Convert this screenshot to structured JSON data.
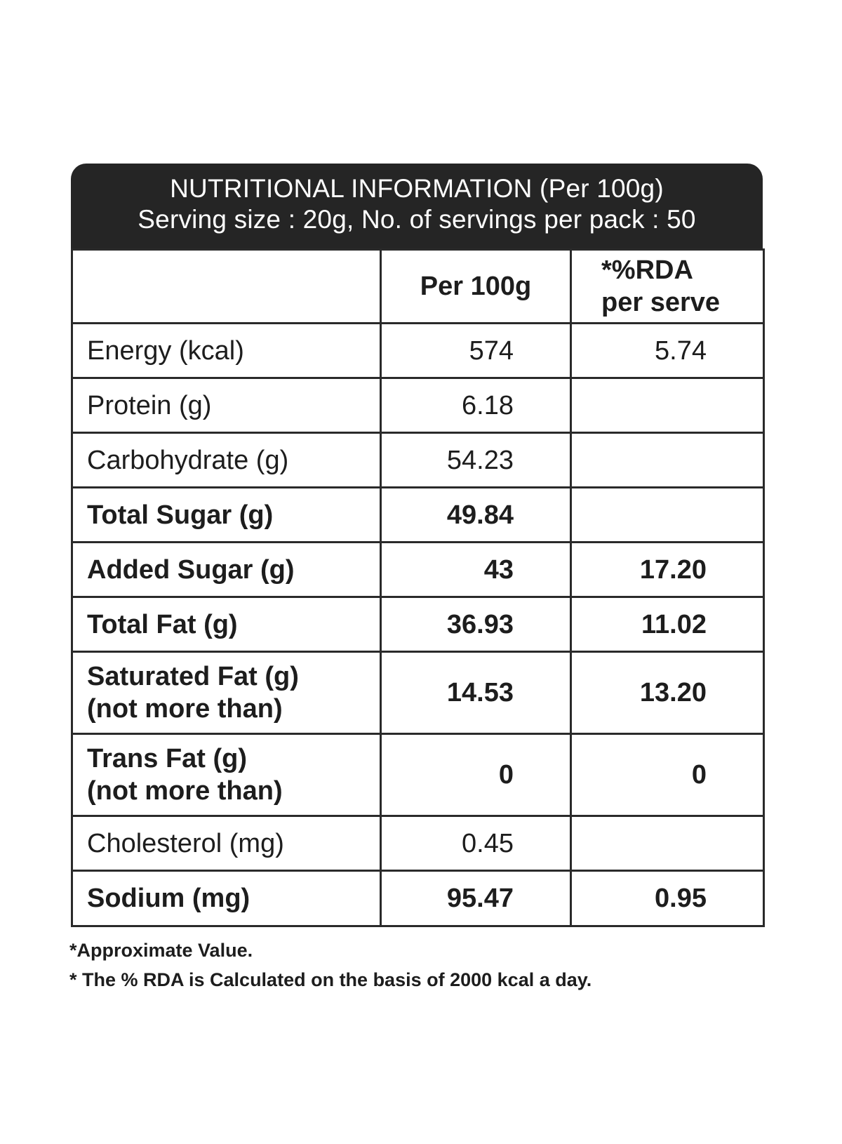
{
  "header": {
    "title": "NUTRITIONAL INFORMATION (Per 100g)",
    "subtitle": "Serving size : 20g, No. of servings per pack : 50"
  },
  "columns": {
    "blank": "",
    "per100g": "Per 100g",
    "rda_line1": "*%RDA",
    "rda_line2": "per serve"
  },
  "rows": [
    {
      "label": "Energy (kcal)",
      "label2": "",
      "per100g": "574",
      "rda": "5.74",
      "bold": false
    },
    {
      "label": "Protein (g)",
      "label2": "",
      "per100g": "6.18",
      "rda": "",
      "bold": false
    },
    {
      "label": "Carbohydrate (g)",
      "label2": "",
      "per100g": "54.23",
      "rda": "",
      "bold": false
    },
    {
      "label": "Total Sugar (g)",
      "label2": "",
      "per100g": "49.84",
      "rda": "",
      "bold": true
    },
    {
      "label": "Added Sugar (g)",
      "label2": "",
      "per100g": "43",
      "rda": "17.20",
      "bold": true
    },
    {
      "label": "Total Fat (g)",
      "label2": "",
      "per100g": "36.93",
      "rda": "11.02",
      "bold": true
    },
    {
      "label": "Saturated Fat (g)",
      "label2": "(not more than)",
      "per100g": "14.53",
      "rda": "13.20",
      "bold": true
    },
    {
      "label": "Trans Fat (g)",
      "label2": "(not more than)",
      "per100g": "0",
      "rda": "0",
      "bold": true
    },
    {
      "label": "Cholesterol (mg)",
      "label2": "",
      "per100g": "0.45",
      "rda": "",
      "bold": false
    },
    {
      "label": "Sodium (mg)",
      "label2": "",
      "per100g": "95.47",
      "rda": "0.95",
      "bold": true
    }
  ],
  "footnotes": {
    "approx": "*Approximate Value.",
    "rda_basis": "* The % RDA is Calculated on the basis of 2000 kcal a day."
  }
}
